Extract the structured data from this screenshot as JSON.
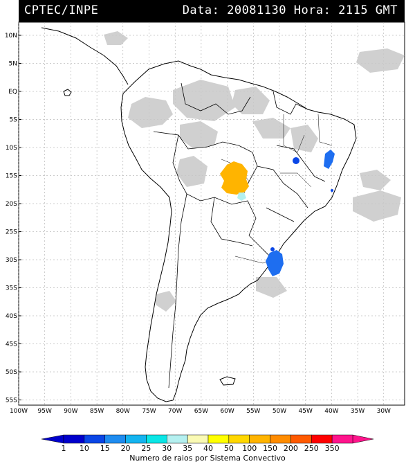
{
  "header": {
    "left": "CPTEC/INPE",
    "right": "Data: 20081130 Hora: 2115 GMT"
  },
  "map": {
    "lat_labels": [
      "10N",
      "5N",
      "EQ",
      "5S",
      "10S",
      "15S",
      "20S",
      "25S",
      "30S",
      "35S",
      "40S",
      "45S",
      "50S",
      "55S"
    ],
    "lon_labels": [
      "100W",
      "95W",
      "90W",
      "85W",
      "80W",
      "75W",
      "70W",
      "65W",
      "60W",
      "55W",
      "50W",
      "45W",
      "40W",
      "35W",
      "30W"
    ]
  },
  "colorbar": {
    "title": "Numero de raios por Sistema Convectivo",
    "labels": [
      "1",
      "10",
      "15",
      "20",
      "25",
      "30",
      "35",
      "40",
      "50",
      "100",
      "150",
      "200",
      "250",
      "350"
    ],
    "colors": [
      "#0000cc",
      "#0a46e6",
      "#1e8cf0",
      "#14b4f0",
      "#0ae6e6",
      "#b4f0f0",
      "#fafab4",
      "#ffff00",
      "#ffd700",
      "#ffb400",
      "#ff8c00",
      "#ff5a00",
      "#ff0000",
      "#ff148c"
    ]
  },
  "systems": [
    {
      "color": "#ffb400",
      "label": "100"
    },
    {
      "color": "#1e6ef0",
      "label": "15"
    },
    {
      "color": "#0a46e6",
      "label": "10"
    }
  ]
}
